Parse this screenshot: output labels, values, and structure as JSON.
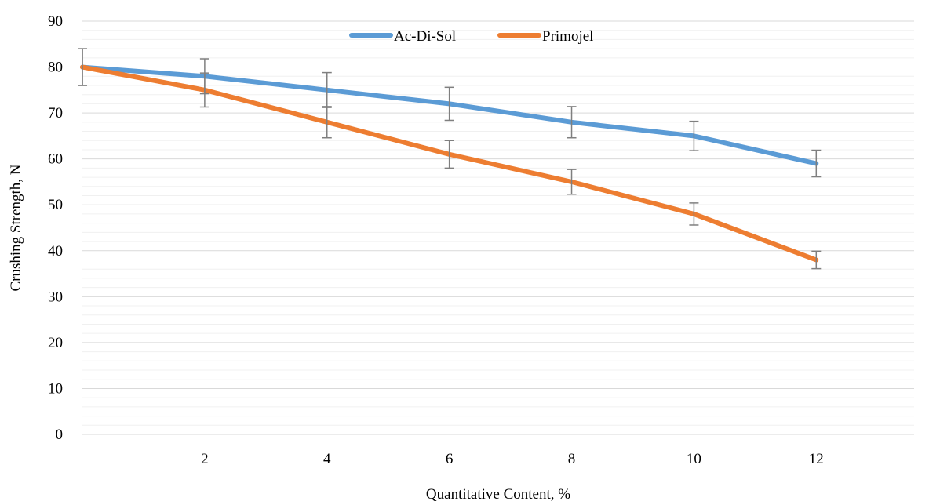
{
  "chart_data": {
    "type": "line",
    "title": "",
    "xlabel": "Quantitative Content, %",
    "ylabel": "Crushing Strength, N",
    "x": [
      0,
      2,
      4,
      6,
      8,
      10,
      12
    ],
    "x_tick_labels": [
      "2",
      "4",
      "6",
      "8",
      "10",
      "12"
    ],
    "y_tick_labels": [
      "0",
      "10",
      "20",
      "30",
      "40",
      "50",
      "60",
      "70",
      "80",
      "90"
    ],
    "ylim": [
      0,
      90
    ],
    "y_major_step": 10,
    "y_minor_step": 2,
    "grid": true,
    "legend_position": "top-center",
    "series": [
      {
        "name": "Ac-Di-Sol",
        "color": "#5b9bd5",
        "values": [
          80,
          78,
          75,
          72,
          68,
          65,
          59
        ],
        "error": [
          4,
          3.8,
          3.8,
          3.6,
          3.4,
          3.2,
          2.9
        ]
      },
      {
        "name": "Primojel",
        "color": "#ed7d31",
        "values": [
          80,
          75,
          68,
          61,
          55,
          48,
          38
        ],
        "error": [
          4,
          3.7,
          3.4,
          3,
          2.7,
          2.4,
          1.9
        ]
      }
    ],
    "error_bar_color": "#7f7f7f"
  }
}
